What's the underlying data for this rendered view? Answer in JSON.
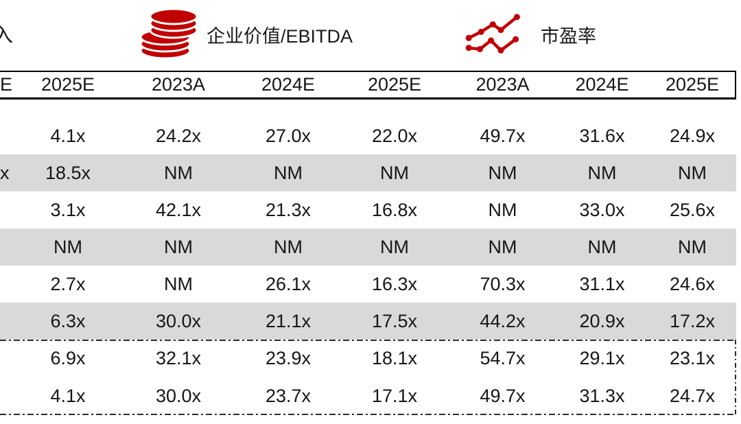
{
  "legend": {
    "left_fragment": "入",
    "items": [
      {
        "icon": "coins-icon",
        "label": "企业价值/EBITDA"
      },
      {
        "icon": "line-chart-icon",
        "label": "市盈率"
      }
    ]
  },
  "table": {
    "columns": [
      "E",
      "2025E",
      "2023A",
      "2024E",
      "2025E",
      "2023A",
      "2024E",
      "2025E"
    ],
    "rows": [
      {
        "shaded": false,
        "cells": [
          "",
          "4.1x",
          "24.2x",
          "27.0x",
          "22.0x",
          "49.7x",
          "31.6x",
          "24.9x"
        ]
      },
      {
        "shaded": true,
        "cells": [
          "x",
          "18.5x",
          "NM",
          "NM",
          "NM",
          "NM",
          "NM",
          "NM"
        ]
      },
      {
        "shaded": false,
        "cells": [
          "",
          "3.1x",
          "42.1x",
          "21.3x",
          "16.8x",
          "NM",
          "33.0x",
          "25.6x"
        ]
      },
      {
        "shaded": true,
        "cells": [
          "",
          "NM",
          "NM",
          "NM",
          "NM",
          "NM",
          "NM",
          "NM"
        ]
      },
      {
        "shaded": false,
        "cells": [
          "",
          "2.7x",
          "NM",
          "26.1x",
          "16.3x",
          "70.3x",
          "31.1x",
          "24.6x"
        ]
      },
      {
        "shaded": true,
        "cells": [
          "",
          "6.3x",
          "30.0x",
          "21.1x",
          "17.5x",
          "44.2x",
          "20.9x",
          "17.2x"
        ]
      }
    ],
    "summary_rows": [
      {
        "cells": [
          "",
          "6.9x",
          "32.1x",
          "23.9x",
          "18.1x",
          "54.7x",
          "29.1x",
          "23.1x"
        ]
      },
      {
        "cells": [
          "",
          "4.1x",
          "30.0x",
          "23.7x",
          "17.1x",
          "49.7x",
          "31.3x",
          "24.7x"
        ]
      }
    ]
  },
  "colors": {
    "accent_red": "#C00000",
    "row_shade": "#D9D9D9",
    "border_black": "#000000"
  }
}
